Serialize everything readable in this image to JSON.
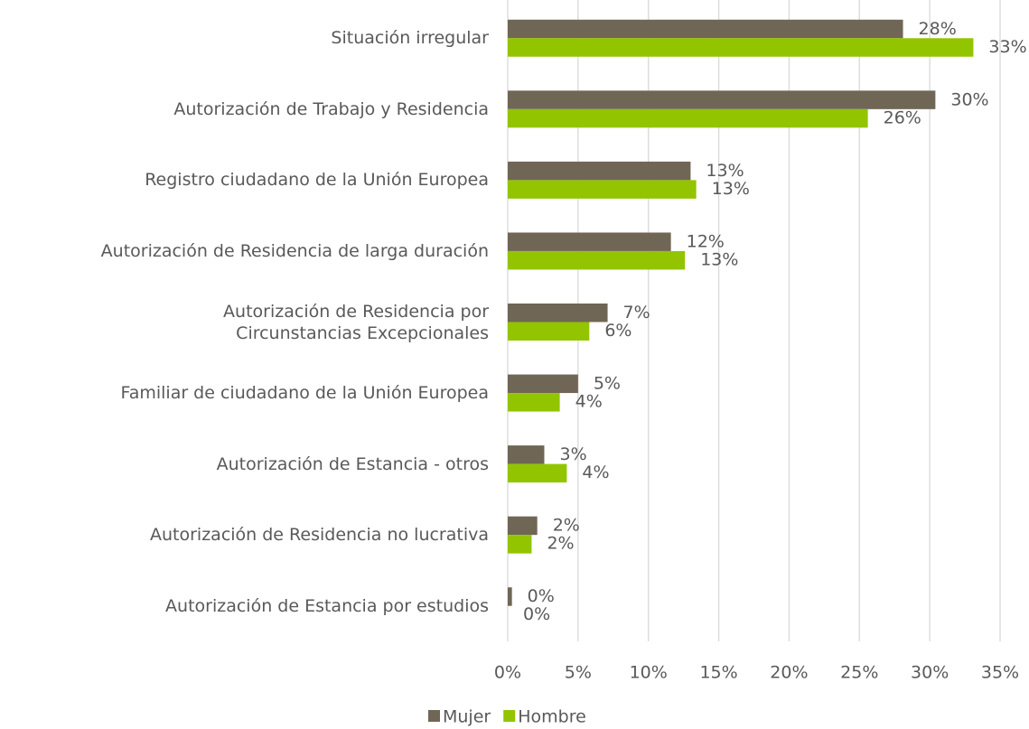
{
  "chart_data": {
    "type": "barh",
    "categories": [
      "Situación irregular",
      "Autorización de Trabajo y Residencia",
      "Registro ciudadano de la Unión Europea",
      "Autorización de Residencia de larga duración",
      "Autorización de Residencia por\nCircunstancias Excepcionales",
      "Familiar de ciudadano de la Unión Europea",
      "Autorización de Estancia - otros",
      "Autorización de Residencia no lucrativa",
      "Autorización de Estancia por estudios"
    ],
    "series": [
      {
        "name": "Mujer",
        "color": "#706656",
        "values": [
          28.1,
          30.4,
          13.0,
          11.6,
          7.1,
          5.0,
          2.6,
          2.1,
          0.3
        ],
        "value_labels": [
          "28%",
          "30%",
          "13%",
          "12%",
          "7%",
          "5%",
          "3%",
          "2%",
          "0%"
        ]
      },
      {
        "name": "Hombre",
        "color": "#92c500",
        "values": [
          33.1,
          25.6,
          13.4,
          12.6,
          5.8,
          3.7,
          4.2,
          1.7,
          0.0
        ],
        "value_labels": [
          "33%",
          "26%",
          "13%",
          "13%",
          "6%",
          "4%",
          "4%",
          "2%",
          "0%"
        ]
      }
    ],
    "xlim": [
      0,
      35
    ],
    "xticks": [
      {
        "value": 0,
        "label": "0%"
      },
      {
        "value": 5,
        "label": "5%"
      },
      {
        "value": 10,
        "label": "10%"
      },
      {
        "value": 15,
        "label": "15%"
      },
      {
        "value": 20,
        "label": "20%"
      },
      {
        "value": 25,
        "label": "25%"
      },
      {
        "value": 30,
        "label": "30%"
      },
      {
        "value": 35,
        "label": "35%"
      }
    ],
    "grid": true,
    "legend": "bottom"
  }
}
